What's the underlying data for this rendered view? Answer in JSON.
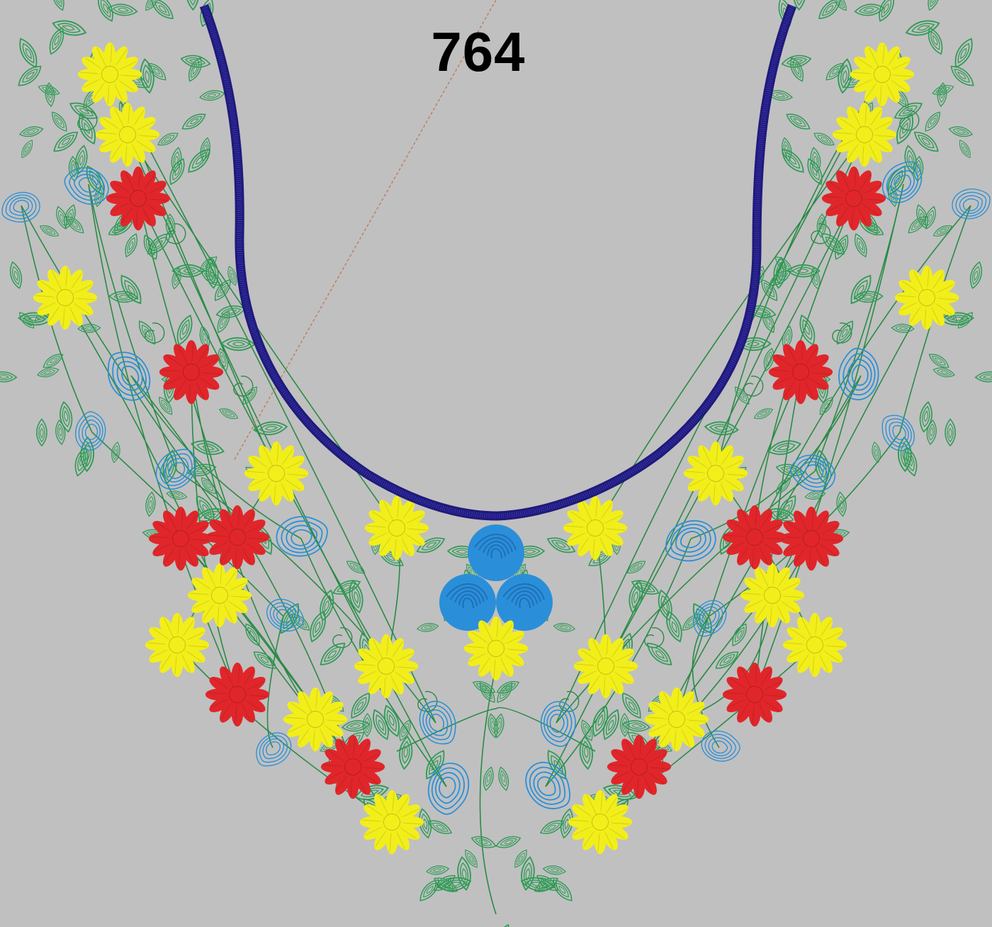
{
  "design": {
    "number": "764"
  },
  "colors": {
    "background": "#c0c0c0",
    "neckline": "#1f1a7a",
    "vine_green": "#2a8a45",
    "leaf_green": "#2f9b55",
    "flower_yellow": "#f2ee1a",
    "flower_red": "#e0262a",
    "paisley_blue": "#2a8fd8",
    "guide_line": "#c08060",
    "number_text": "#000000"
  },
  "motifs": {
    "yellow_flower": "yellow-daisy-icon",
    "red_flower": "red-daisy-icon",
    "blue_flower": "blue-rose-icon",
    "paisley": "blue-paisley-icon",
    "leaf": "green-leaf-icon",
    "spiral": "green-spiral-icon"
  }
}
